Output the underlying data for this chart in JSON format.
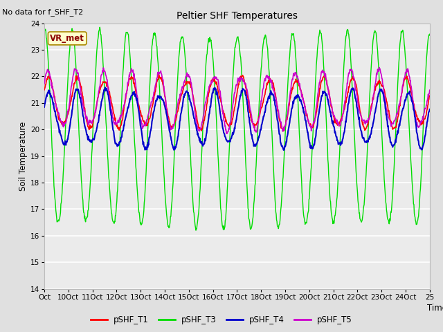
{
  "title": "Peltier SHF Temperatures",
  "subtitle": "No data for f_SHF_T2",
  "ylabel": "Soil Temperature",
  "xlabel": "Time",
  "annotation": "VR_met",
  "ylim": [
    14.0,
    24.0
  ],
  "yticks": [
    14.0,
    15.0,
    16.0,
    17.0,
    18.0,
    19.0,
    20.0,
    21.0,
    22.0,
    23.0,
    24.0
  ],
  "xtick_labels": [
    "Oct",
    "10Oct",
    "11Oct",
    "12Oct",
    "13Oct",
    "14Oct",
    "15Oct",
    "16Oct",
    "17Oct",
    "18Oct",
    "19Oct",
    "20Oct",
    "21Oct",
    "22Oct",
    "23Oct",
    "24Oct",
    "25"
  ],
  "legend_labels": [
    "pSHF_T1",
    "pSHF_T3",
    "pSHF_T4",
    "pSHF_T5"
  ],
  "legend_colors": [
    "#ff0000",
    "#00dd00",
    "#0000cc",
    "#cc00cc"
  ],
  "bg_color": "#e0e0e0",
  "plot_bg_color": "#ebebeb",
  "grid_color": "#ffffff",
  "n_points": 1000,
  "t3_mean": 20.0,
  "t3_amplitude": 3.6,
  "t3_n_cycles": 14,
  "t3_phase": 1.5,
  "t4_mean": 20.4,
  "t4_amplitude": 1.0,
  "t4_n_cycles": 14,
  "t4_phase": 0.3,
  "t5_mean": 21.1,
  "t5_amplitude": 1.0,
  "t5_n_cycles": 14,
  "t5_phase": 0.6,
  "t1_mean": 21.0,
  "t1_amplitude": 0.9,
  "t1_n_cycles": 14,
  "t1_phase": 0.45
}
